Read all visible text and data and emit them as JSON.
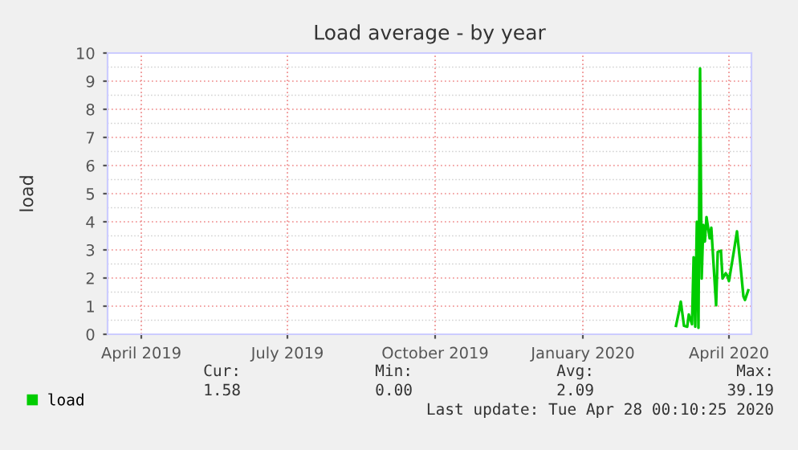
{
  "chart_data": {
    "type": "line",
    "title": "Load average - by year",
    "ylabel": "load",
    "x": [
      "2020-03-12",
      "2020-03-14",
      "2020-03-15",
      "2020-03-17",
      "2020-03-19",
      "2020-03-20",
      "2020-03-22",
      "2020-03-23",
      "2020-03-24",
      "2020-03-25",
      "2020-03-26",
      "2020-03-27",
      "2020-03-28",
      "2020-03-29",
      "2020-03-30",
      "2020-03-31",
      "2020-04-02",
      "2020-04-03",
      "2020-04-06",
      "2020-04-07",
      "2020-04-09",
      "2020-04-10",
      "2020-04-12",
      "2020-04-13",
      "2020-04-14",
      "2020-04-17",
      "2020-04-19",
      "2020-04-21",
      "2020-04-23",
      "2020-04-24",
      "2020-04-26"
    ],
    "series": [
      {
        "name": "load",
        "color": "#00cc00",
        "values": [
          0.3,
          0.84,
          1.16,
          0.3,
          0.27,
          0.7,
          0.36,
          2.74,
          0.27,
          4.0,
          0.23,
          9.45,
          1.98,
          3.89,
          3.3,
          4.17,
          3.41,
          3.79,
          1.03,
          2.93,
          2.97,
          1.98,
          2.17,
          2.08,
          1.89,
          2.93,
          3.66,
          2.55,
          1.35,
          1.22,
          1.56
        ]
      }
    ],
    "xlim": [
      "2019-03-24",
      "2020-04-28"
    ],
    "xticks": [
      {
        "value": "2019-04-14",
        "label": "April 2019"
      },
      {
        "value": "2019-07-14",
        "label": "July 2019"
      },
      {
        "value": "2019-10-14",
        "label": "October 2019"
      },
      {
        "value": "2020-01-14",
        "label": "January 2020"
      },
      {
        "value": "2020-04-14",
        "label": "April 2020"
      }
    ],
    "ylim": [
      0,
      10
    ],
    "yticks": [
      0,
      1,
      2,
      3,
      4,
      5,
      6,
      7,
      8,
      9,
      10
    ],
    "grid": true,
    "legend": "bottom left",
    "annotations": [
      "Cur:",
      "Min:",
      "Avg:",
      "Max:",
      "1.58",
      "0.00",
      "2.09",
      "39.19",
      "Last update: Tue Apr 28 00:10:25 2020"
    ]
  }
}
